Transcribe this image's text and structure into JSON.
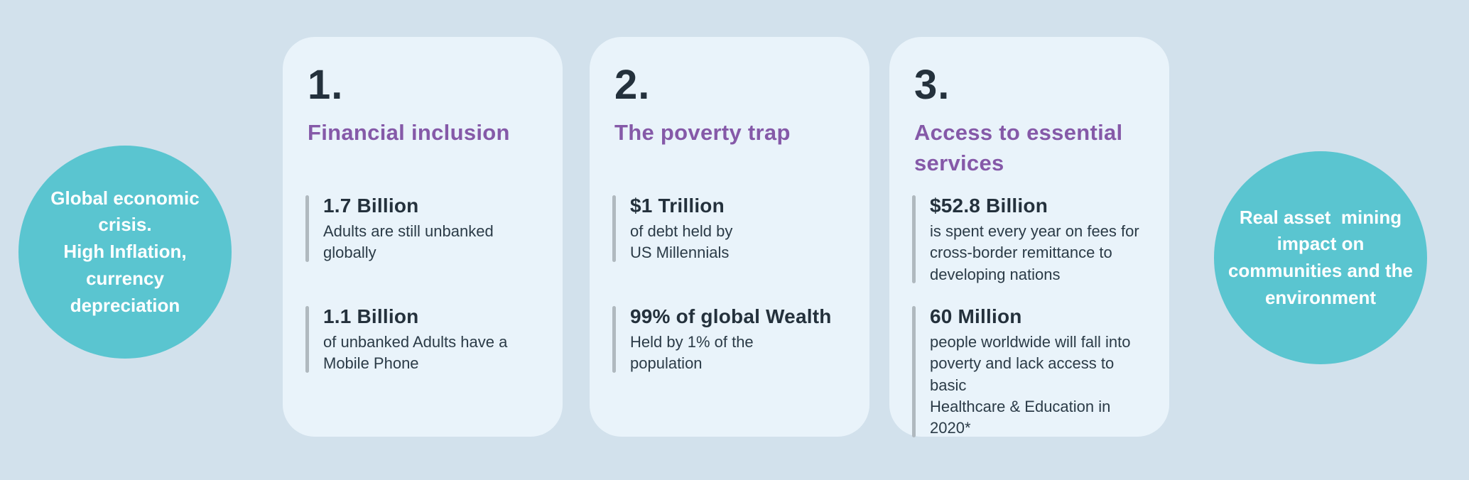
{
  "colors": {
    "page_background": "#d2e1ec",
    "card_background": "#e9f3fa",
    "circle_teal": "#5ac5d0",
    "circle_text_white": "#ffffff",
    "heading_purple": "#8559a8",
    "text_dark": "#24313c",
    "stat_bar_gray": "#b0b9bf"
  },
  "left_circle": {
    "text": "Global economic\ncrisis.\nHigh Inflation,\ncurrency\ndepreciation"
  },
  "right_circle": {
    "text": "Real asset  mining\nimpact on\ncommunities and the\nenvironment"
  },
  "cards": [
    {
      "number": "1.",
      "title": "Financial inclusion",
      "stats": [
        {
          "value": "1.7 Billion",
          "description": "Adults are still unbanked\nglobally"
        },
        {
          "value": "1.1 Billion",
          "description": "of unbanked Adults have a\nMobile Phone"
        }
      ]
    },
    {
      "number": "2.",
      "title": "The poverty trap",
      "stats": [
        {
          "value": "$1 Trillion",
          "description": "of debt held by\nUS Millennials"
        },
        {
          "value": "99% of global Wealth",
          "description": "Held by 1% of the\npopulation"
        }
      ]
    },
    {
      "number": "3.",
      "title": "Access to essential\nservices",
      "stats": [
        {
          "value": "$52.8 Billion",
          "description": "is spent every year on fees for\ncross-border remittance to\ndeveloping nations"
        },
        {
          "value": "60 Million",
          "description": "people worldwide will fall into\npoverty and lack access to basic\nHealthcare & Education in 2020*"
        }
      ]
    }
  ]
}
